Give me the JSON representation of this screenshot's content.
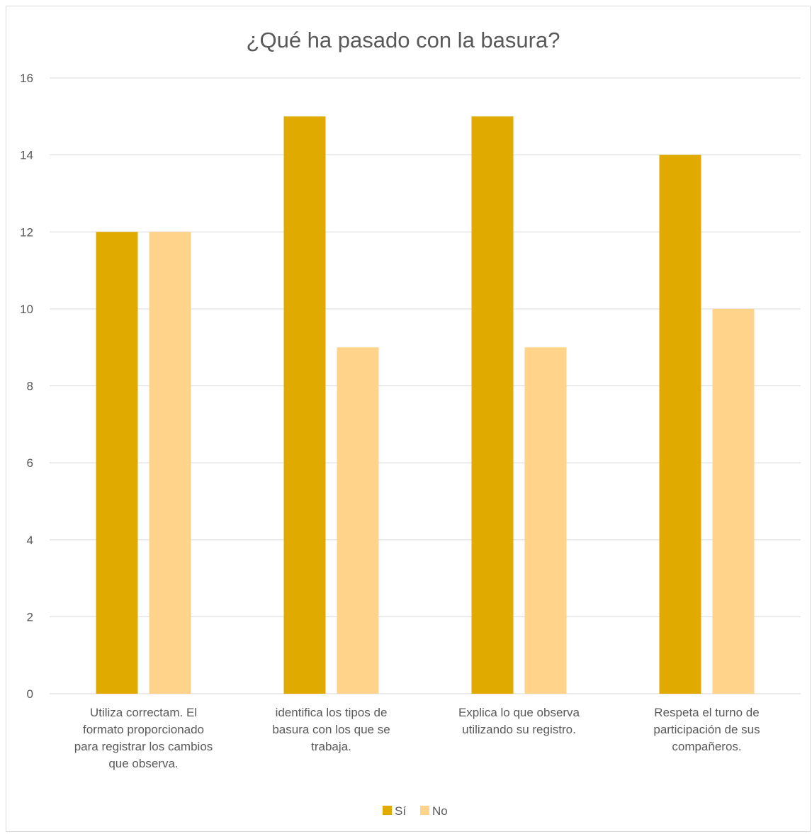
{
  "chart_data": {
    "type": "bar",
    "title": "¿Qué ha pasado con la basura?",
    "xlabel": "",
    "ylabel": "",
    "categories": [
      [
        "Utiliza correctam. El",
        "formato proporcionado",
        "para registrar los cambios",
        "que observa."
      ],
      [
        "identifica los tipos de",
        "basura con los que se",
        "trabaja."
      ],
      [
        "Explica lo que observa",
        "utilizando su registro."
      ],
      [
        "Respeta el turno de",
        "participación de sus",
        "compañeros."
      ]
    ],
    "series": [
      {
        "name": "Sí",
        "color": "#E0AA00",
        "values": [
          12,
          15,
          15,
          14
        ]
      },
      {
        "name": "No",
        "color": "#FFD38A",
        "values": [
          12,
          9,
          9,
          10
        ]
      }
    ],
    "ylim": [
      0,
      16
    ],
    "yticks": [
      0,
      2,
      4,
      6,
      8,
      10,
      12,
      14,
      16
    ],
    "grid": true,
    "legend": "bottom-center",
    "colors": {
      "grid": "#d9d9d9",
      "text": "#595959"
    }
  }
}
